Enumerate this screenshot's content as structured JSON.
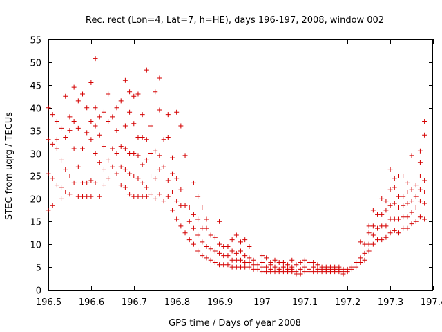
{
  "chart_data": {
    "type": "scatter",
    "title": "Rec. rect (Lon=4, Lat=7, h=HE), days 196-197, 2008, window 002",
    "xlabel": "GPS time / Days of year 2008",
    "ylabel": "STEC from uqrg / TECUs",
    "xlim": [
      196.5,
      197.4
    ],
    "ylim": [
      0,
      55
    ],
    "xticks": [
      196.5,
      196.6,
      196.7,
      196.8,
      196.9,
      197,
      197.1,
      197.2,
      197.3,
      197.4
    ],
    "xtick_labels": [
      "196.5",
      "196.6",
      "196.7",
      "196.8",
      "196.9",
      "197",
      "197.1",
      "197.2",
      "197.3",
      "197.4"
    ],
    "yticks": [
      0,
      5,
      10,
      15,
      20,
      25,
      30,
      35,
      40,
      45,
      50,
      55
    ],
    "ytick_labels": [
      "0",
      "5",
      "10",
      "15",
      "20",
      "25",
      "30",
      "35",
      "40",
      "45",
      "50",
      "55"
    ],
    "grid": false,
    "legend": "none",
    "marker": "+",
    "color": "#d40000",
    "points": [
      [
        196.5,
        17.5
      ],
      [
        196.5,
        25.5
      ],
      [
        196.5,
        33
      ],
      [
        196.5,
        40
      ],
      [
        196.51,
        18.5
      ],
      [
        196.51,
        24.5
      ],
      [
        196.51,
        32
      ],
      [
        196.51,
        38.5
      ],
      [
        196.52,
        23
      ],
      [
        196.52,
        31
      ],
      [
        196.52,
        33
      ],
      [
        196.52,
        37
      ],
      [
        196.53,
        20
      ],
      [
        196.53,
        22.5
      ],
      [
        196.53,
        28.5
      ],
      [
        196.53,
        35.5
      ],
      [
        196.54,
        21.5
      ],
      [
        196.54,
        26.5
      ],
      [
        196.54,
        33.5
      ],
      [
        196.54,
        42.5
      ],
      [
        196.55,
        21
      ],
      [
        196.55,
        25
      ],
      [
        196.55,
        35
      ],
      [
        196.55,
        38
      ],
      [
        196.56,
        23.5
      ],
      [
        196.56,
        31
      ],
      [
        196.56,
        37
      ],
      [
        196.56,
        44.5
      ],
      [
        196.57,
        20.5
      ],
      [
        196.57,
        27
      ],
      [
        196.57,
        35.5
      ],
      [
        196.57,
        41.5
      ],
      [
        196.58,
        20.5
      ],
      [
        196.58,
        23.5
      ],
      [
        196.58,
        31
      ],
      [
        196.58,
        43
      ],
      [
        196.59,
        20.5
      ],
      [
        196.59,
        23.5
      ],
      [
        196.59,
        34.5
      ],
      [
        196.59,
        40
      ],
      [
        196.6,
        20.5
      ],
      [
        196.6,
        24
      ],
      [
        196.6,
        33
      ],
      [
        196.6,
        37
      ],
      [
        196.6,
        45.5
      ],
      [
        196.61,
        23.5
      ],
      [
        196.61,
        30
      ],
      [
        196.61,
        36
      ],
      [
        196.61,
        40
      ],
      [
        196.61,
        50.8
      ],
      [
        196.62,
        20.5
      ],
      [
        196.62,
        28
      ],
      [
        196.62,
        34
      ],
      [
        196.62,
        38
      ],
      [
        196.63,
        23
      ],
      [
        196.63,
        26.5
      ],
      [
        196.63,
        31.5
      ],
      [
        196.63,
        39
      ],
      [
        196.64,
        24.5
      ],
      [
        196.64,
        28.5
      ],
      [
        196.64,
        37
      ],
      [
        196.64,
        43
      ],
      [
        196.65,
        27
      ],
      [
        196.65,
        31
      ],
      [
        196.65,
        38
      ],
      [
        196.66,
        25.5
      ],
      [
        196.66,
        30
      ],
      [
        196.66,
        35
      ],
      [
        196.66,
        40
      ],
      [
        196.67,
        23
      ],
      [
        196.67,
        27
      ],
      [
        196.67,
        31.5
      ],
      [
        196.67,
        41.5
      ],
      [
        196.68,
        22.5
      ],
      [
        196.68,
        26.5
      ],
      [
        196.68,
        31
      ],
      [
        196.68,
        36
      ],
      [
        196.68,
        46
      ],
      [
        196.69,
        21
      ],
      [
        196.69,
        25.5
      ],
      [
        196.69,
        30
      ],
      [
        196.69,
        39
      ],
      [
        196.69,
        43.5
      ],
      [
        196.7,
        20.5
      ],
      [
        196.7,
        25
      ],
      [
        196.7,
        30
      ],
      [
        196.7,
        36.5
      ],
      [
        196.7,
        42.5
      ],
      [
        196.71,
        20.5
      ],
      [
        196.71,
        24.5
      ],
      [
        196.71,
        29.5
      ],
      [
        196.71,
        33.5
      ],
      [
        196.71,
        43
      ],
      [
        196.72,
        20.5
      ],
      [
        196.72,
        23.5
      ],
      [
        196.72,
        27.5
      ],
      [
        196.72,
        33.5
      ],
      [
        196.72,
        38.5
      ],
      [
        196.73,
        20.5
      ],
      [
        196.73,
        22.5
      ],
      [
        196.73,
        28.5
      ],
      [
        196.73,
        33
      ],
      [
        196.73,
        48.3
      ],
      [
        196.74,
        21
      ],
      [
        196.74,
        25
      ],
      [
        196.74,
        30
      ],
      [
        196.74,
        36
      ],
      [
        196.75,
        20
      ],
      [
        196.75,
        24.5
      ],
      [
        196.75,
        30.5
      ],
      [
        196.75,
        43.5
      ],
      [
        196.76,
        21
      ],
      [
        196.76,
        26.5
      ],
      [
        196.76,
        29.5
      ],
      [
        196.76,
        39.5
      ],
      [
        196.76,
        46.5
      ],
      [
        196.77,
        19.5
      ],
      [
        196.77,
        27
      ],
      [
        196.77,
        33
      ],
      [
        196.78,
        20.5
      ],
      [
        196.78,
        24
      ],
      [
        196.78,
        33.5
      ],
      [
        196.78,
        38.5
      ],
      [
        196.79,
        17.5
      ],
      [
        196.79,
        21.5
      ],
      [
        196.79,
        25.5
      ],
      [
        196.79,
        29
      ],
      [
        196.8,
        15.5
      ],
      [
        196.8,
        19.5
      ],
      [
        196.8,
        24.5
      ],
      [
        196.8,
        39
      ],
      [
        196.81,
        14
      ],
      [
        196.81,
        18.5
      ],
      [
        196.81,
        22
      ],
      [
        196.81,
        36
      ],
      [
        196.82,
        12.5
      ],
      [
        196.82,
        18.5
      ],
      [
        196.82,
        29.5
      ],
      [
        196.83,
        11
      ],
      [
        196.83,
        15
      ],
      [
        196.83,
        18
      ],
      [
        196.84,
        10
      ],
      [
        196.84,
        13.5
      ],
      [
        196.84,
        16.5
      ],
      [
        196.84,
        23.5
      ],
      [
        196.85,
        8.5
      ],
      [
        196.85,
        12
      ],
      [
        196.85,
        15.5
      ],
      [
        196.85,
        20.5
      ],
      [
        196.86,
        7.5
      ],
      [
        196.86,
        10.5
      ],
      [
        196.86,
        13.5
      ],
      [
        196.86,
        18
      ],
      [
        196.87,
        7
      ],
      [
        196.87,
        9.5
      ],
      [
        196.87,
        13.5
      ],
      [
        196.87,
        15.5
      ],
      [
        196.88,
        6.5
      ],
      [
        196.88,
        9
      ],
      [
        196.88,
        12
      ],
      [
        196.89,
        6
      ],
      [
        196.89,
        8.5
      ],
      [
        196.89,
        11.5
      ],
      [
        196.9,
        5.5
      ],
      [
        196.9,
        8
      ],
      [
        196.9,
        10
      ],
      [
        196.9,
        15
      ],
      [
        196.91,
        5.5
      ],
      [
        196.91,
        7.5
      ],
      [
        196.91,
        9.5
      ],
      [
        196.92,
        5.5
      ],
      [
        196.92,
        7.5
      ],
      [
        196.92,
        9.5
      ],
      [
        196.93,
        5
      ],
      [
        196.93,
        6.5
      ],
      [
        196.93,
        8.5
      ],
      [
        196.93,
        11
      ],
      [
        196.94,
        5
      ],
      [
        196.94,
        6.5
      ],
      [
        196.94,
        8
      ],
      [
        196.94,
        12
      ],
      [
        196.95,
        5
      ],
      [
        196.95,
        6.5
      ],
      [
        196.95,
        8.5
      ],
      [
        196.95,
        10.5
      ],
      [
        196.96,
        5
      ],
      [
        196.96,
        6
      ],
      [
        196.96,
        7.5
      ],
      [
        196.96,
        11
      ],
      [
        196.97,
        5
      ],
      [
        196.97,
        6
      ],
      [
        196.97,
        7
      ],
      [
        196.97,
        9.5
      ],
      [
        196.98,
        4.5
      ],
      [
        196.98,
        5.5
      ],
      [
        196.98,
        6.5
      ],
      [
        196.99,
        4.5
      ],
      [
        196.99,
        5.5
      ],
      [
        197,
        4
      ],
      [
        197,
        5
      ],
      [
        197,
        6
      ],
      [
        197,
        7.5
      ],
      [
        197.01,
        4
      ],
      [
        197.01,
        5
      ],
      [
        197.01,
        7
      ],
      [
        197.02,
        4
      ],
      [
        197.02,
        4.5
      ],
      [
        197.02,
        5.5
      ],
      [
        197.02,
        6
      ],
      [
        197.03,
        4
      ],
      [
        197.03,
        5
      ],
      [
        197.03,
        6.5
      ],
      [
        197.04,
        4
      ],
      [
        197.04,
        4.5
      ],
      [
        197.04,
        6
      ],
      [
        197.05,
        4
      ],
      [
        197.05,
        5
      ],
      [
        197.05,
        6
      ],
      [
        197.06,
        4
      ],
      [
        197.06,
        4.5
      ],
      [
        197.06,
        5.5
      ],
      [
        197.07,
        4
      ],
      [
        197.07,
        4.5
      ],
      [
        197.07,
        5
      ],
      [
        197.07,
        6.5
      ],
      [
        197.08,
        3.5
      ],
      [
        197.08,
        4
      ],
      [
        197.08,
        5.5
      ],
      [
        197.09,
        3.5
      ],
      [
        197.09,
        4.5
      ],
      [
        197.09,
        6
      ],
      [
        197.1,
        4
      ],
      [
        197.1,
        5
      ],
      [
        197.1,
        6.5
      ],
      [
        197.11,
        4
      ],
      [
        197.11,
        4.5
      ],
      [
        197.11,
        6
      ],
      [
        197.12,
        4
      ],
      [
        197.12,
        5
      ],
      [
        197.12,
        6
      ],
      [
        197.13,
        4
      ],
      [
        197.13,
        4.5
      ],
      [
        197.13,
        5.5
      ],
      [
        197.14,
        4
      ],
      [
        197.14,
        4.5
      ],
      [
        197.14,
        5
      ],
      [
        197.15,
        4
      ],
      [
        197.15,
        4.5
      ],
      [
        197.15,
        5
      ],
      [
        197.16,
        4
      ],
      [
        197.16,
        4.5
      ],
      [
        197.16,
        5
      ],
      [
        197.17,
        4
      ],
      [
        197.17,
        4.5
      ],
      [
        197.17,
        5
      ],
      [
        197.18,
        4
      ],
      [
        197.18,
        4.5
      ],
      [
        197.18,
        5
      ],
      [
        197.19,
        3.5
      ],
      [
        197.19,
        4
      ],
      [
        197.19,
        4.5
      ],
      [
        197.2,
        4
      ],
      [
        197.2,
        4.5
      ],
      [
        197.21,
        4.5
      ],
      [
        197.21,
        5
      ],
      [
        197.22,
        5
      ],
      [
        197.22,
        6
      ],
      [
        197.23,
        6
      ],
      [
        197.23,
        7
      ],
      [
        197.23,
        10.5
      ],
      [
        197.24,
        6.5
      ],
      [
        197.24,
        8
      ],
      [
        197.24,
        10
      ],
      [
        197.25,
        8.5
      ],
      [
        197.25,
        10
      ],
      [
        197.25,
        12.5
      ],
      [
        197.25,
        14
      ],
      [
        197.26,
        10
      ],
      [
        197.26,
        12
      ],
      [
        197.26,
        14
      ],
      [
        197.26,
        17.5
      ],
      [
        197.27,
        11
      ],
      [
        197.27,
        13.5
      ],
      [
        197.27,
        16.5
      ],
      [
        197.28,
        11
      ],
      [
        197.28,
        14
      ],
      [
        197.28,
        16.5
      ],
      [
        197.28,
        20
      ],
      [
        197.29,
        11.5
      ],
      [
        197.29,
        14
      ],
      [
        197.29,
        17.5
      ],
      [
        197.29,
        19.5
      ],
      [
        197.3,
        12.5
      ],
      [
        197.3,
        15.5
      ],
      [
        197.3,
        18.5
      ],
      [
        197.3,
        22
      ],
      [
        197.3,
        26.5
      ],
      [
        197.31,
        13
      ],
      [
        197.31,
        15.5
      ],
      [
        197.31,
        19
      ],
      [
        197.31,
        22.5
      ],
      [
        197.31,
        24.5
      ],
      [
        197.32,
        12.5
      ],
      [
        197.32,
        15.5
      ],
      [
        197.32,
        18
      ],
      [
        197.32,
        20.5
      ],
      [
        197.32,
        25
      ],
      [
        197.33,
        13.5
      ],
      [
        197.33,
        16
      ],
      [
        197.33,
        18.5
      ],
      [
        197.33,
        20.5
      ],
      [
        197.33,
        25
      ],
      [
        197.34,
        13.5
      ],
      [
        197.34,
        16
      ],
      [
        197.34,
        19
      ],
      [
        197.34,
        21.5
      ],
      [
        197.34,
        23.5
      ],
      [
        197.35,
        14.5
      ],
      [
        197.35,
        17
      ],
      [
        197.35,
        19.5
      ],
      [
        197.35,
        22
      ],
      [
        197.35,
        29.5
      ],
      [
        197.36,
        15
      ],
      [
        197.36,
        18
      ],
      [
        197.36,
        20.5
      ],
      [
        197.36,
        23
      ],
      [
        197.37,
        16
      ],
      [
        197.37,
        19.5
      ],
      [
        197.37,
        22
      ],
      [
        197.37,
        25
      ],
      [
        197.37,
        28
      ],
      [
        197.37,
        30.5
      ],
      [
        197.38,
        15.5
      ],
      [
        197.38,
        19
      ],
      [
        197.38,
        21.5
      ],
      [
        197.38,
        24
      ],
      [
        197.38,
        34
      ],
      [
        197.38,
        37
      ]
    ]
  }
}
